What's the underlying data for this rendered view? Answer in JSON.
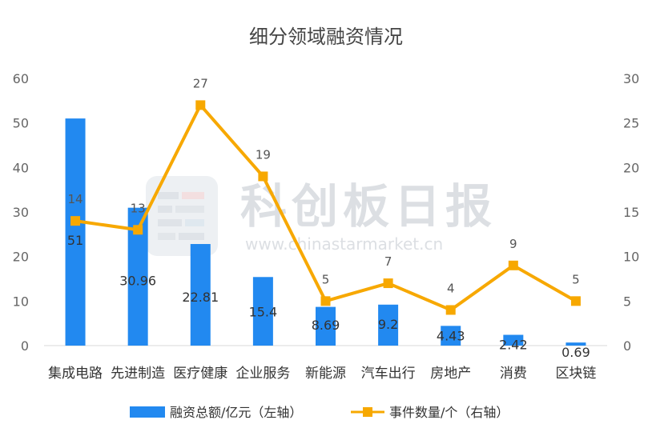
{
  "chart_data": {
    "type": "bar",
    "title": "细分领域融资情况",
    "categories": [
      "集成电路",
      "先进制造",
      "医疗健康",
      "企业服务",
      "新能源",
      "汽车出行",
      "房地产",
      "消费",
      "区块链"
    ],
    "series": [
      {
        "name": "融资总额/亿元（左轴）",
        "type": "bar",
        "axis": "left",
        "color": "#2289f0",
        "values": [
          51,
          30.96,
          22.81,
          15.4,
          8.69,
          9.2,
          4.43,
          2.42,
          0.69
        ],
        "labels": [
          "51",
          "30.96",
          "22.81",
          "15.4",
          "8.69",
          "9.2",
          "4.43",
          "2.42",
          "0.69"
        ]
      },
      {
        "name": "事件数量/个（右轴）",
        "type": "line",
        "axis": "right",
        "color": "#f7a800",
        "values": [
          14,
          13,
          27,
          19,
          5,
          7,
          4,
          9,
          5
        ],
        "labels": [
          "14",
          "13",
          "27",
          "19",
          "5",
          "7",
          "4",
          "9",
          "5"
        ]
      }
    ],
    "y_left": {
      "range": [
        0,
        60
      ],
      "ticks": [
        "0",
        "10",
        "20",
        "30",
        "40",
        "50",
        "60"
      ]
    },
    "y_right": {
      "range": [
        0,
        30
      ],
      "ticks": [
        "0",
        "5",
        "10",
        "15",
        "20",
        "25",
        "30"
      ]
    },
    "grid": false,
    "legend": "bottom",
    "watermark": {
      "text": "科创板日报",
      "url": "www.chinastarmarket.cn"
    }
  }
}
